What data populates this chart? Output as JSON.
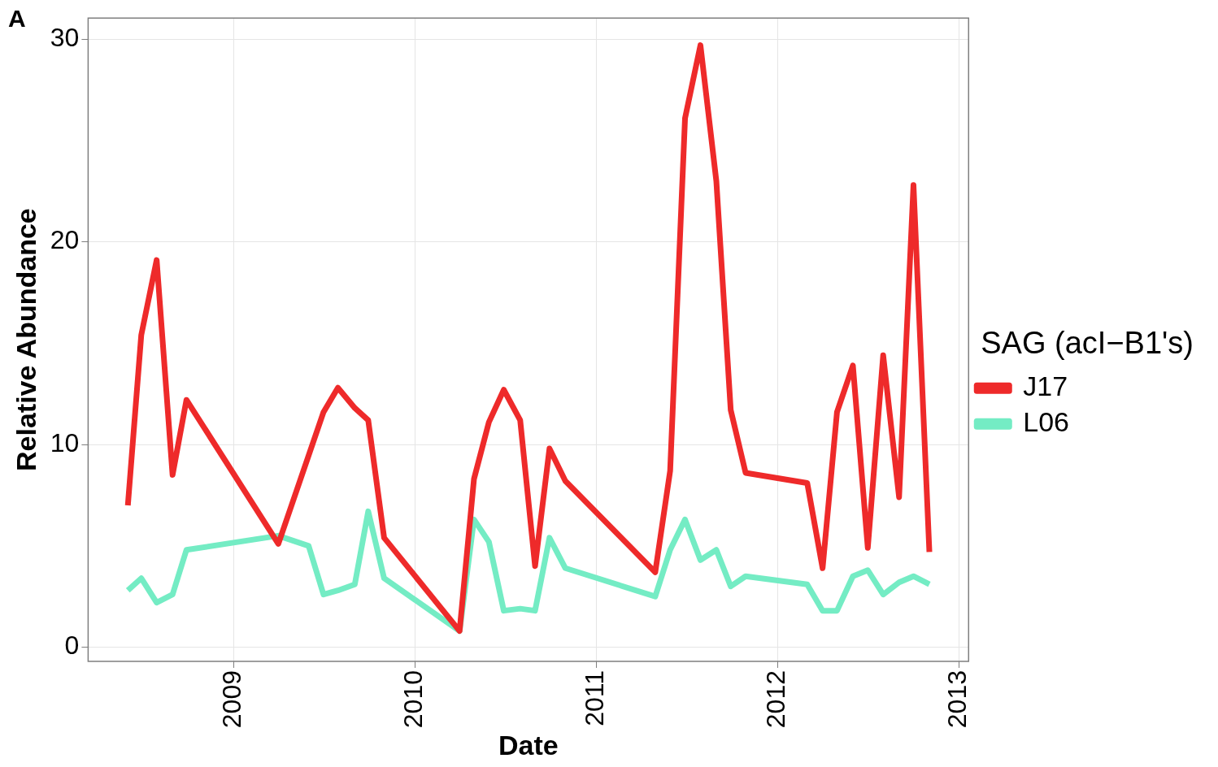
{
  "chart_data": {
    "type": "line",
    "xlabel": "Date",
    "ylabel": "Relative Abundance",
    "legend_title": "SAG (acI−B1's)",
    "annotations": [
      "A"
    ],
    "xlim": [
      "2008-03-14",
      "2013-01-20"
    ],
    "xticks": [
      "2009",
      "2010",
      "2011",
      "2012",
      "2013"
    ],
    "ylim": [
      -0.7,
      31.04
    ],
    "yticks": [
      0,
      10,
      20,
      30
    ],
    "grid": true,
    "legend": "right",
    "marker": "none",
    "line_style": "solid",
    "series": [
      {
        "name": "J17",
        "color": "#ee2a2a",
        "x": [
          "2008-06-02",
          "2008-06-29",
          "2008-07-30",
          "2008-08-31",
          "2008-09-28",
          "2009-04-01",
          "2009-07-01",
          "2009-07-30",
          "2009-09-02",
          "2009-09-29",
          "2009-10-31",
          "2010-04-01",
          "2010-04-30",
          "2010-05-30",
          "2010-06-29",
          "2010-08-01",
          "2010-08-31",
          "2010-09-29",
          "2010-10-31",
          "2011-04-30",
          "2011-05-30",
          "2011-06-29",
          "2011-07-30",
          "2011-08-31",
          "2011-09-29",
          "2011-10-29",
          "2012-03-01",
          "2012-04-01",
          "2012-04-30",
          "2012-06-01",
          "2012-07-01",
          "2012-08-01",
          "2012-09-02",
          "2012-10-01",
          "2012-11-02"
        ],
        "values": [
          7.0,
          15.4,
          19.1,
          8.5,
          12.2,
          5.1,
          11.6,
          12.8,
          11.8,
          11.2,
          5.4,
          0.8,
          8.3,
          11.1,
          12.7,
          11.2,
          4.0,
          9.8,
          8.2,
          3.7,
          8.7,
          26.1,
          29.7,
          23.0,
          11.7,
          8.6,
          8.1,
          3.9,
          11.6,
          13.9,
          4.9,
          14.4,
          7.4,
          22.8,
          4.7
        ]
      },
      {
        "name": "L06",
        "color": "#74ecc4",
        "x": [
          "2008-06-02",
          "2008-06-29",
          "2008-07-30",
          "2008-08-31",
          "2008-09-28",
          "2009-04-01",
          "2009-06-01",
          "2009-07-01",
          "2009-07-30",
          "2009-09-02",
          "2009-09-29",
          "2009-10-31",
          "2010-04-01",
          "2010-04-30",
          "2010-05-30",
          "2010-06-29",
          "2010-08-01",
          "2010-08-31",
          "2010-09-29",
          "2010-10-31",
          "2011-04-30",
          "2011-05-30",
          "2011-06-29",
          "2011-07-30",
          "2011-08-31",
          "2011-09-29",
          "2011-10-29",
          "2012-03-01",
          "2012-04-01",
          "2012-04-30",
          "2012-06-01",
          "2012-07-01",
          "2012-08-01",
          "2012-09-02",
          "2012-10-01",
          "2012-11-02"
        ],
        "values": [
          2.8,
          3.4,
          2.2,
          2.6,
          4.8,
          5.5,
          5.0,
          2.6,
          2.8,
          3.1,
          6.7,
          3.4,
          0.8,
          6.3,
          5.2,
          1.8,
          1.9,
          1.8,
          5.4,
          3.9,
          2.5,
          4.8,
          6.3,
          4.3,
          4.8,
          3.0,
          3.5,
          3.1,
          1.8,
          1.8,
          3.5,
          3.8,
          2.6,
          3.2,
          3.5,
          3.1
        ]
      }
    ]
  }
}
